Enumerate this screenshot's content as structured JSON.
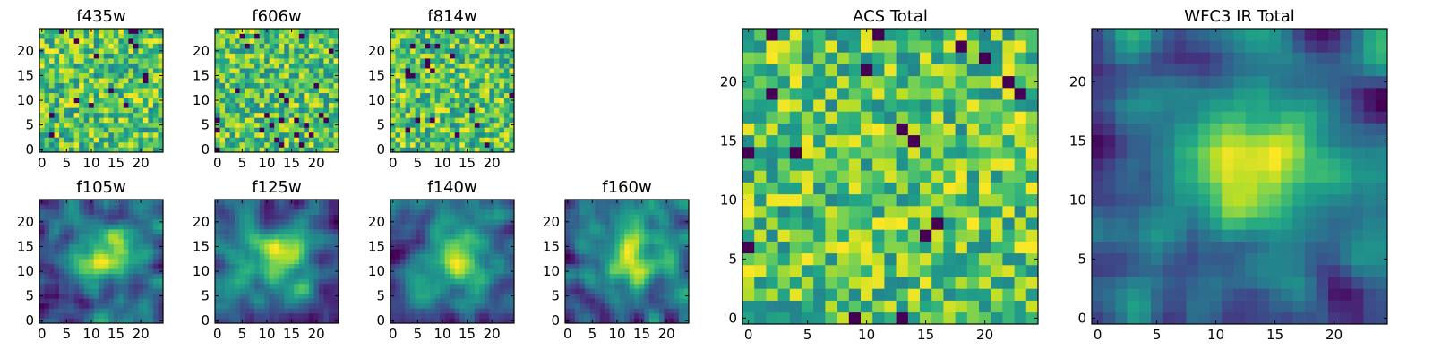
{
  "chart_data": [
    {
      "type": "heatmap",
      "title": "f435w",
      "xticks": [
        "0",
        "5",
        "10",
        "15",
        "20"
      ],
      "yticks": [
        "0",
        "5",
        "10",
        "15",
        "20"
      ],
      "xlim": [
        -0.5,
        24.5
      ],
      "ylim": [
        -0.5,
        24.5
      ],
      "grid": false,
      "grid_size": [
        25,
        25
      ],
      "colormap": "viridis",
      "pattern": "noise",
      "seed": 11
    },
    {
      "type": "heatmap",
      "title": "f606w",
      "xticks": [
        "0",
        "5",
        "10",
        "15",
        "20"
      ],
      "yticks": [
        "0",
        "5",
        "10",
        "15",
        "20"
      ],
      "xlim": [
        -0.5,
        24.5
      ],
      "ylim": [
        -0.5,
        24.5
      ],
      "grid": false,
      "grid_size": [
        25,
        25
      ],
      "colormap": "viridis",
      "pattern": "noise",
      "seed": 23
    },
    {
      "type": "heatmap",
      "title": "f814w",
      "xticks": [
        "0",
        "5",
        "10",
        "15",
        "20"
      ],
      "yticks": [
        "0",
        "5",
        "10",
        "15",
        "20"
      ],
      "xlim": [
        -0.5,
        24.5
      ],
      "ylim": [
        -0.5,
        24.5
      ],
      "grid": false,
      "grid_size": [
        25,
        25
      ],
      "colormap": "viridis",
      "pattern": "noise",
      "seed": 37
    },
    {
      "type": "heatmap",
      "title": "f105w",
      "xticks": [
        "0",
        "5",
        "10",
        "15",
        "20"
      ],
      "yticks": [
        "0",
        "5",
        "10",
        "15",
        "20"
      ],
      "xlim": [
        -0.5,
        24.5
      ],
      "ylim": [
        -0.5,
        24.5
      ],
      "grid": false,
      "grid_size": [
        25,
        25
      ],
      "colormap": "viridis",
      "pattern": "smooth",
      "seed": 41
    },
    {
      "type": "heatmap",
      "title": "f125w",
      "xticks": [
        "0",
        "5",
        "10",
        "15",
        "20"
      ],
      "yticks": [
        "0",
        "5",
        "10",
        "15",
        "20"
      ],
      "xlim": [
        -0.5,
        24.5
      ],
      "ylim": [
        -0.5,
        24.5
      ],
      "grid": false,
      "grid_size": [
        25,
        25
      ],
      "colormap": "viridis",
      "pattern": "smooth",
      "seed": 53
    },
    {
      "type": "heatmap",
      "title": "f140w",
      "xticks": [
        "0",
        "5",
        "10",
        "15",
        "20"
      ],
      "yticks": [
        "0",
        "5",
        "10",
        "15",
        "20"
      ],
      "xlim": [
        -0.5,
        24.5
      ],
      "ylim": [
        -0.5,
        24.5
      ],
      "grid": false,
      "grid_size": [
        25,
        25
      ],
      "colormap": "viridis",
      "pattern": "smooth",
      "seed": 67
    },
    {
      "type": "heatmap",
      "title": "f160w",
      "xticks": [
        "0",
        "5",
        "10",
        "15",
        "20"
      ],
      "yticks": [
        "0",
        "5",
        "10",
        "15",
        "20"
      ],
      "xlim": [
        -0.5,
        24.5
      ],
      "ylim": [
        -0.5,
        24.5
      ],
      "grid": false,
      "grid_size": [
        25,
        25
      ],
      "colormap": "viridis",
      "pattern": "smooth",
      "seed": 79
    },
    {
      "type": "heatmap",
      "title": "ACS Total",
      "xticks": [
        "0",
        "5",
        "10",
        "15",
        "20"
      ],
      "yticks": [
        "0",
        "5",
        "10",
        "15",
        "20"
      ],
      "xlim": [
        -0.5,
        24.5
      ],
      "ylim": [
        -0.5,
        24.5
      ],
      "grid": false,
      "grid_size": [
        25,
        25
      ],
      "colormap": "viridis",
      "pattern": "noise",
      "seed": 97
    },
    {
      "type": "heatmap",
      "title": "WFC3 IR Total",
      "xticks": [
        "0",
        "5",
        "10",
        "15",
        "20"
      ],
      "yticks": [
        "0",
        "5",
        "10",
        "15",
        "20"
      ],
      "xlim": [
        -0.5,
        24.5
      ],
      "ylim": [
        -0.5,
        24.5
      ],
      "grid": false,
      "grid_size": [
        25,
        25
      ],
      "colormap": "viridis",
      "pattern": "smooth",
      "seed": 113
    }
  ],
  "colors": {
    "frame": "#000000",
    "background": "#ffffff"
  }
}
